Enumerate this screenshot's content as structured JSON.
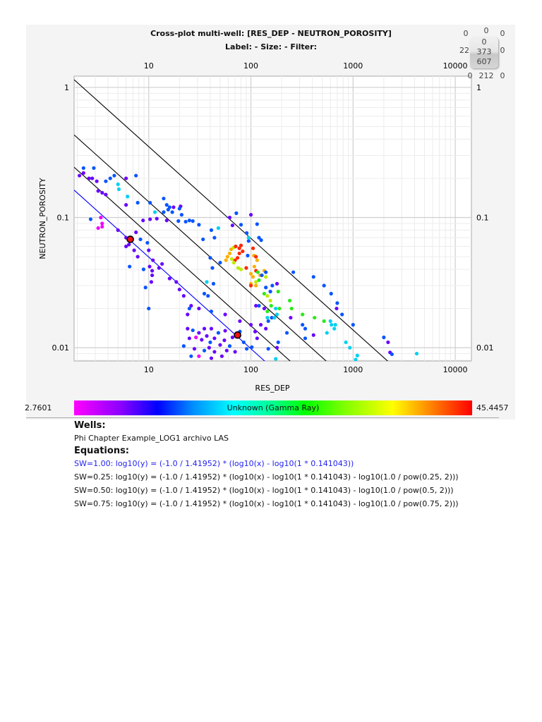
{
  "header": {
    "title": "Cross-plot multi-well: [RES_DEP - NEUTRON_POROSITY]",
    "subtitle": "Label:  -  Size:  -  Filter:"
  },
  "counters": {
    "row1": [
      "0",
      "0",
      "0"
    ],
    "row2_left": "22",
    "row2_right": "0",
    "box": [
      "0",
      "373",
      "607"
    ],
    "row3": [
      "0",
      "212",
      "0"
    ]
  },
  "colorbar": {
    "min_label": "2.7601",
    "max_label": "45.4457",
    "label": "Unknown (Gamma Ray)",
    "min": 2.7601,
    "max": 45.4457
  },
  "wells": {
    "heading": "Wells:",
    "items": [
      "Phi Chapter Example_LOG1 archivo LAS"
    ]
  },
  "equations": {
    "heading": "Equations:",
    "items": [
      {
        "text": "SW=1.00: log10(y) = (-1.0 / 1.41952) * (log10(x) - log10(1 * 0.141043))",
        "color": "#2222ee",
        "sw": 1.0
      },
      {
        "text": "SW=0.25: log10(y) = (-1.0 / 1.41952) * (log10(x) - log10(1 * 0.141043) - log10(1.0 / pow(0.25, 2)))",
        "color": "#111111",
        "sw": 0.25
      },
      {
        "text": "SW=0.50: log10(y) = (-1.0 / 1.41952) * (log10(x) - log10(1 * 0.141043) - log10(1.0 / pow(0.5, 2)))",
        "color": "#111111",
        "sw": 0.5
      },
      {
        "text": "SW=0.75: log10(y) = (-1.0 / 1.41952) * (log10(x) - log10(1 * 0.141043) - log10(1.0 / pow(0.75, 2)))",
        "color": "#111111",
        "sw": 0.75
      }
    ]
  },
  "chart_data": {
    "type": "scatter",
    "title": "Cross-plot multi-well: [RES_DEP - NEUTRON_POROSITY]",
    "xlabel": "RES_DEP",
    "ylabel": "NEUTRON_POROSITY",
    "xscale": "log",
    "yscale": "log",
    "xlim": [
      1.86,
      14400
    ],
    "ylim": [
      0.0079,
      1.22
    ],
    "xticks": [
      "10",
      "100",
      "1000",
      "10000"
    ],
    "yticks": [
      "1",
      "0.1",
      "0.01"
    ],
    "grid": true,
    "color_by": "Unknown (Gamma Ray)",
    "lines": {
      "slope": -0.70446,
      "a_rw": 0.141043,
      "sw": [
        1.0,
        0.25,
        0.5,
        0.75
      ],
      "colors": [
        "#0000ff",
        "#000000",
        "#000000",
        "#000000"
      ]
    },
    "highlighted_points": [
      [
        6.6,
        0.068
      ],
      [
        74,
        0.0125
      ]
    ],
    "points_format": [
      "x",
      "y",
      "gamma_ray"
    ],
    "points": [
      [
        2.3,
        0.24,
        14
      ],
      [
        2.9,
        0.24,
        14
      ],
      [
        2.3,
        0.22,
        9
      ],
      [
        2.1,
        0.21,
        9
      ],
      [
        2.6,
        0.2,
        9
      ],
      [
        2.8,
        0.2,
        9
      ],
      [
        3.1,
        0.19,
        9
      ],
      [
        3.2,
        0.16,
        9
      ],
      [
        3.5,
        0.155,
        9
      ],
      [
        3.8,
        0.15,
        9
      ],
      [
        3.8,
        0.19,
        14
      ],
      [
        4.2,
        0.2,
        14
      ],
      [
        4.6,
        0.21,
        14
      ],
      [
        5,
        0.18,
        20
      ],
      [
        5.1,
        0.165,
        20
      ],
      [
        6.2,
        0.145,
        20
      ],
      [
        6,
        0.125,
        9
      ],
      [
        6,
        0.2,
        9
      ],
      [
        7.5,
        0.21,
        14
      ],
      [
        7.8,
        0.13,
        14
      ],
      [
        10.3,
        0.13,
        14
      ],
      [
        11.5,
        0.11,
        20
      ],
      [
        14,
        0.14,
        14
      ],
      [
        15,
        0.125,
        14
      ],
      [
        16,
        0.12,
        14
      ],
      [
        17.5,
        0.12,
        9
      ],
      [
        14,
        0.11,
        14
      ],
      [
        15.5,
        0.115,
        14
      ],
      [
        21,
        0.105,
        14
      ],
      [
        20.5,
        0.122,
        9
      ],
      [
        17,
        0.11,
        14
      ],
      [
        20,
        0.117,
        14
      ],
      [
        2.7,
        0.097,
        14
      ],
      [
        8.8,
        0.095,
        9
      ],
      [
        10.3,
        0.097,
        9
      ],
      [
        12,
        0.098,
        9
      ],
      [
        15,
        0.095,
        9
      ],
      [
        19.5,
        0.094,
        14
      ],
      [
        23,
        0.093,
        14
      ],
      [
        25,
        0.095,
        14
      ],
      [
        27,
        0.094,
        14
      ],
      [
        31,
        0.088,
        14
      ],
      [
        41,
        0.08,
        14
      ],
      [
        48,
        0.083,
        20
      ],
      [
        44,
        0.07,
        14
      ],
      [
        3.4,
        0.1,
        3.5
      ],
      [
        3.5,
        0.09,
        3.5
      ],
      [
        3.5,
        0.085,
        3.5
      ],
      [
        3.2,
        0.083,
        3.5
      ],
      [
        5,
        0.08,
        9
      ],
      [
        6,
        0.07,
        9
      ],
      [
        7.5,
        0.077,
        9
      ],
      [
        8.3,
        0.068,
        14
      ],
      [
        6.4,
        0.062,
        9
      ],
      [
        6,
        0.06,
        9
      ],
      [
        7.2,
        0.056,
        9
      ],
      [
        10,
        0.056,
        9
      ],
      [
        9.7,
        0.064,
        14
      ],
      [
        7.8,
        0.05,
        9
      ],
      [
        6.5,
        0.042,
        14
      ],
      [
        10.2,
        0.042,
        9
      ],
      [
        11,
        0.047,
        9
      ],
      [
        8.9,
        0.04,
        14
      ],
      [
        10.8,
        0.036,
        9
      ],
      [
        9.3,
        0.029,
        14
      ],
      [
        10,
        0.02,
        14
      ],
      [
        13.5,
        0.044,
        9
      ],
      [
        10.6,
        0.032,
        9
      ],
      [
        10.8,
        0.039,
        9
      ],
      [
        12.6,
        0.041,
        9
      ],
      [
        16,
        0.034,
        9
      ],
      [
        18.6,
        0.032,
        9
      ],
      [
        20,
        0.028,
        9
      ],
      [
        22,
        0.025,
        9
      ],
      [
        26,
        0.021,
        9
      ],
      [
        35,
        0.026,
        14
      ],
      [
        38,
        0.025,
        14
      ],
      [
        24,
        0.018,
        9
      ],
      [
        25,
        0.02,
        14
      ],
      [
        31,
        0.02,
        9
      ],
      [
        41,
        0.019,
        14
      ],
      [
        56,
        0.018,
        9
      ],
      [
        24,
        0.014,
        9
      ],
      [
        27,
        0.0136,
        14
      ],
      [
        31,
        0.013,
        9
      ],
      [
        35,
        0.014,
        9
      ],
      [
        41,
        0.014,
        9
      ],
      [
        48,
        0.013,
        14
      ],
      [
        56,
        0.0135,
        9
      ],
      [
        25,
        0.0118,
        9
      ],
      [
        29,
        0.012,
        3.5
      ],
      [
        33,
        0.0115,
        9
      ],
      [
        37,
        0.0123,
        9
      ],
      [
        40,
        0.011,
        14
      ],
      [
        44,
        0.0118,
        9
      ],
      [
        50,
        0.0105,
        9
      ],
      [
        55,
        0.0114,
        9
      ],
      [
        62,
        0.0103,
        14
      ],
      [
        66,
        0.012,
        9
      ],
      [
        28,
        0.0098,
        9
      ],
      [
        35,
        0.0095,
        14
      ],
      [
        39,
        0.01,
        9
      ],
      [
        44,
        0.0093,
        9
      ],
      [
        52,
        0.0086,
        9
      ],
      [
        58,
        0.0095,
        9
      ],
      [
        31,
        0.0086,
        3.5
      ],
      [
        41,
        0.0083,
        9
      ],
      [
        78,
        0.0133,
        14
      ],
      [
        85,
        0.011,
        14
      ],
      [
        91,
        0.0098,
        14
      ],
      [
        70,
        0.0093,
        9
      ],
      [
        22,
        0.0103,
        14
      ],
      [
        26,
        0.0086,
        14
      ],
      [
        78,
        0.016,
        9
      ],
      [
        100,
        0.015,
        9
      ],
      [
        110,
        0.0133,
        9
      ],
      [
        115,
        0.0118,
        9
      ],
      [
        102,
        0.0101,
        14
      ],
      [
        112,
        0.021,
        9
      ],
      [
        120,
        0.021,
        14
      ],
      [
        135,
        0.02,
        9
      ],
      [
        148,
        0.016,
        14
      ],
      [
        125,
        0.015,
        9
      ],
      [
        160,
        0.017,
        14
      ],
      [
        162,
        0.03,
        14
      ],
      [
        140,
        0.014,
        9
      ],
      [
        148,
        0.0098,
        14
      ],
      [
        180,
        0.01,
        9
      ],
      [
        62,
        0.1,
        9
      ],
      [
        66,
        0.087,
        9
      ],
      [
        80,
        0.088,
        14
      ],
      [
        100,
        0.105,
        9
      ],
      [
        91,
        0.076,
        14
      ],
      [
        95,
        0.066,
        14
      ],
      [
        95,
        0.07,
        20
      ],
      [
        93,
        0.051,
        14
      ],
      [
        50,
        0.045,
        14
      ],
      [
        42,
        0.041,
        14
      ],
      [
        37,
        0.032,
        20
      ],
      [
        43,
        0.031,
        14
      ],
      [
        40,
        0.049,
        14
      ],
      [
        34,
        0.068,
        14
      ],
      [
        72,
        0.108,
        14
      ],
      [
        64,
        0.057,
        39
      ],
      [
        68,
        0.059,
        34
      ],
      [
        62,
        0.053,
        39
      ],
      [
        59,
        0.05,
        39
      ],
      [
        57,
        0.047,
        39
      ],
      [
        71,
        0.06,
        44
      ],
      [
        80,
        0.061,
        44
      ],
      [
        77,
        0.058,
        44
      ],
      [
        83,
        0.055,
        44
      ],
      [
        77,
        0.053,
        44
      ],
      [
        74,
        0.049,
        44
      ],
      [
        70,
        0.047,
        44
      ],
      [
        68,
        0.045,
        34
      ],
      [
        65,
        0.048,
        34
      ],
      [
        75,
        0.041,
        34
      ],
      [
        80,
        0.04,
        34
      ],
      [
        90,
        0.041,
        44
      ],
      [
        105,
        0.058,
        44
      ],
      [
        107,
        0.051,
        39
      ],
      [
        112,
        0.05,
        44
      ],
      [
        115,
        0.047,
        39
      ],
      [
        108,
        0.042,
        39
      ],
      [
        112,
        0.039,
        44
      ],
      [
        100,
        0.037,
        39
      ],
      [
        105,
        0.035,
        39
      ],
      [
        100,
        0.031,
        39
      ],
      [
        117,
        0.038,
        28
      ],
      [
        120,
        0.033,
        28
      ],
      [
        112,
        0.032,
        34
      ],
      [
        100,
        0.03,
        44
      ],
      [
        112,
        0.03,
        39
      ],
      [
        123,
        0.036,
        39
      ],
      [
        135,
        0.039,
        39
      ],
      [
        140,
        0.035,
        34
      ],
      [
        135,
        0.026,
        28
      ],
      [
        145,
        0.025,
        34
      ],
      [
        155,
        0.023,
        34
      ],
      [
        158,
        0.021,
        28
      ],
      [
        185,
        0.027,
        28
      ],
      [
        190,
        0.02,
        28
      ],
      [
        175,
        0.02,
        20
      ],
      [
        180,
        0.018,
        20
      ],
      [
        145,
        0.019,
        28
      ],
      [
        145,
        0.017,
        20
      ],
      [
        250,
        0.02,
        28
      ],
      [
        240,
        0.023,
        28
      ],
      [
        320,
        0.018,
        28
      ],
      [
        420,
        0.017,
        28
      ],
      [
        520,
        0.016,
        28
      ],
      [
        600,
        0.016,
        20
      ],
      [
        615,
        0.015,
        20
      ],
      [
        670,
        0.015,
        20
      ],
      [
        655,
        0.014,
        20
      ],
      [
        555,
        0.013,
        20
      ],
      [
        850,
        0.011,
        20
      ],
      [
        930,
        0.01,
        20
      ],
      [
        1100,
        0.0087,
        20
      ],
      [
        1060,
        0.0081,
        20
      ],
      [
        4200,
        0.009,
        20
      ],
      [
        170,
        0.017,
        20
      ],
      [
        175,
        0.0082,
        20
      ],
      [
        260,
        0.038,
        14
      ],
      [
        410,
        0.035,
        14
      ],
      [
        520,
        0.03,
        14
      ],
      [
        610,
        0.026,
        14
      ],
      [
        700,
        0.022,
        14
      ],
      [
        690,
        0.02,
        9
      ],
      [
        780,
        0.018,
        14
      ],
      [
        1000,
        0.015,
        14
      ],
      [
        340,
        0.014,
        14
      ],
      [
        340,
        0.0118,
        14
      ],
      [
        320,
        0.015,
        14
      ],
      [
        410,
        0.0125,
        9
      ],
      [
        245,
        0.017,
        9
      ],
      [
        225,
        0.013,
        14
      ],
      [
        185,
        0.011,
        14
      ],
      [
        2000,
        0.012,
        14
      ],
      [
        2200,
        0.011,
        9
      ],
      [
        2300,
        0.0092,
        9
      ],
      [
        2400,
        0.0089,
        14
      ],
      [
        180,
        0.031,
        9
      ],
      [
        155,
        0.027,
        14
      ],
      [
        140,
        0.029,
        14
      ],
      [
        140,
        0.038,
        14
      ],
      [
        128,
        0.036,
        14
      ],
      [
        120,
        0.07,
        14
      ],
      [
        126,
        0.067,
        14
      ],
      [
        115,
        0.089,
        14
      ]
    ]
  }
}
